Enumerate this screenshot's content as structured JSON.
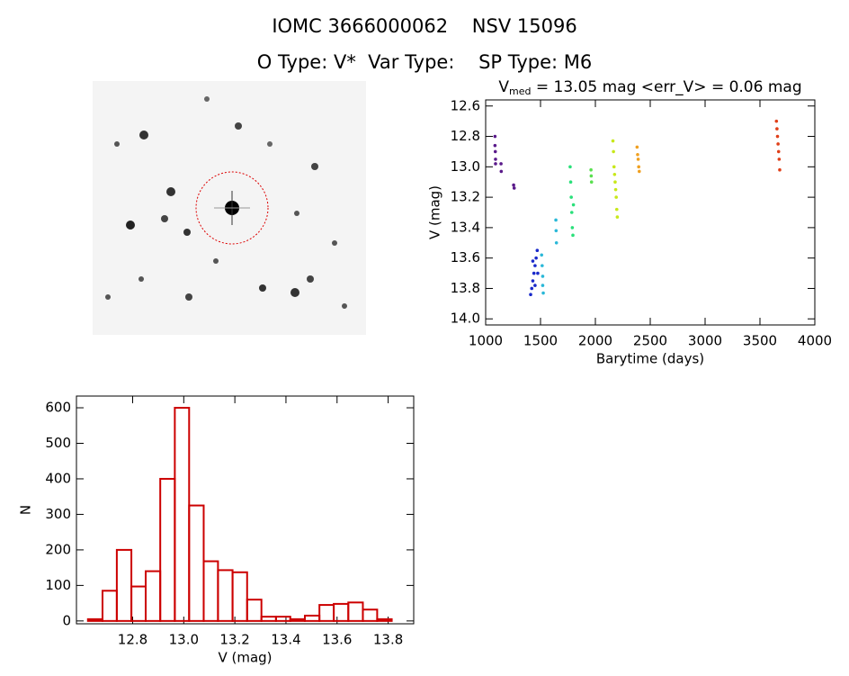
{
  "header": {
    "title": "IOMC 3666000062    NSV 15096",
    "subtitle": "O Type: V*  Var Type:    SP Type: M6"
  },
  "chart_data": [
    {
      "type": "scatter",
      "title": {
        "main": "V",
        "subscript": "med",
        "rest": " = 13.05 mag <err_V> = 0.06 mag"
      },
      "xlabel": "Barytime (days)",
      "ylabel": "V (mag)",
      "xlim": [
        1000,
        4000
      ],
      "ylim": [
        14.04,
        12.56
      ],
      "xticks": [
        1000,
        1500,
        2000,
        2500,
        3000,
        3500,
        4000
      ],
      "yticks": [
        12.6,
        12.8,
        {
          "value": 13,
          "label": "13.0"
        },
        13.2,
        13.4,
        13.6,
        13.8,
        {
          "value": 14,
          "label": "14.0"
        }
      ],
      "series": [
        {
          "color": "#5a1a8a",
          "x": [
            1085,
            1085,
            1088,
            1090,
            1090,
            1140,
            1142,
            1255,
            1260
          ],
          "values": [
            12.8,
            12.86,
            12.9,
            12.95,
            12.98,
            12.98,
            13.03,
            13.12,
            13.14
          ]
        },
        {
          "color": "#1a2aca",
          "x": [
            1410,
            1420,
            1430,
            1440,
            1450,
            1460,
            1470,
            1475,
            1430,
            1450
          ],
          "values": [
            13.84,
            13.8,
            13.75,
            13.7,
            13.65,
            13.6,
            13.55,
            13.7,
            13.62,
            13.78
          ]
        },
        {
          "color": "#2ab8d8",
          "x": [
            1510,
            1515,
            1520,
            1520,
            1525,
            1640,
            1642,
            1645
          ],
          "values": [
            13.58,
            13.65,
            13.72,
            13.78,
            13.83,
            13.35,
            13.42,
            13.5
          ]
        },
        {
          "color": "#2ae07a",
          "x": [
            1770,
            1775,
            1780,
            1785,
            1790,
            1795,
            1800
          ],
          "values": [
            13.0,
            13.1,
            13.2,
            13.3,
            13.4,
            13.45,
            13.25
          ]
        },
        {
          "color": "#5ae050",
          "x": [
            1960,
            1962,
            1965
          ],
          "values": [
            13.02,
            13.06,
            13.1
          ]
        },
        {
          "color": "#c8e81a",
          "x": [
            2160,
            2165,
            2170,
            2175,
            2180,
            2185,
            2190,
            2195,
            2200
          ],
          "values": [
            12.83,
            12.9,
            13.0,
            13.05,
            13.1,
            13.15,
            13.2,
            13.28,
            13.33
          ]
        },
        {
          "color": "#f0a020",
          "x": [
            2380,
            2385,
            2390,
            2395,
            2400
          ],
          "values": [
            12.87,
            12.92,
            12.95,
            13.0,
            13.03
          ]
        },
        {
          "color": "#e0401a",
          "x": [
            3650,
            3655,
            3660,
            3665,
            3670,
            3675,
            3680
          ],
          "values": [
            12.7,
            12.75,
            12.8,
            12.85,
            12.9,
            12.95,
            13.02
          ]
        }
      ]
    },
    {
      "type": "histogram",
      "xlabel": "V (mag)",
      "ylabel": "N",
      "color": "#cc0000",
      "xlim": [
        12.58,
        13.9
      ],
      "ylim": [
        -8,
        633
      ],
      "xticks": [
        12.8,
        {
          "value": 13,
          "label": "13.0"
        },
        13.2,
        13.4,
        13.6,
        13.8
      ],
      "yticks": [
        0,
        100,
        200,
        300,
        400,
        500,
        600
      ],
      "bins": [
        12.625,
        12.682,
        12.738,
        12.795,
        12.851,
        12.908,
        12.965,
        13.021,
        13.078,
        13.134,
        13.191,
        13.248,
        13.304,
        13.361,
        13.417,
        13.474,
        13.531,
        13.587,
        13.644,
        13.701,
        13.757,
        13.814
      ],
      "values": [
        5,
        85,
        200,
        97,
        140,
        400,
        600,
        325,
        168,
        143,
        137,
        60,
        12,
        12,
        5,
        15,
        45,
        48,
        52,
        32,
        5
      ]
    }
  ]
}
